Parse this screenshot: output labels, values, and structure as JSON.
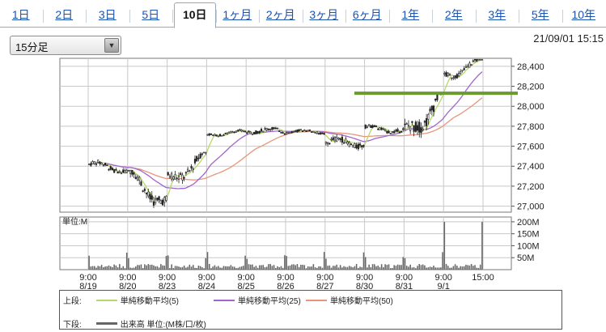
{
  "tabs": [
    {
      "label": "1日",
      "active": false
    },
    {
      "label": "2日",
      "active": false
    },
    {
      "label": "3日",
      "active": false
    },
    {
      "label": "5日",
      "active": false
    },
    {
      "label": "10日",
      "active": true
    },
    {
      "label": "1ヶ月",
      "active": false
    },
    {
      "label": "2ヶ月",
      "active": false
    },
    {
      "label": "3ヶ月",
      "active": false
    },
    {
      "label": "6ヶ月",
      "active": false
    },
    {
      "label": "1年",
      "active": false
    },
    {
      "label": "2年",
      "active": false
    },
    {
      "label": "3年",
      "active": false
    },
    {
      "label": "5年",
      "active": false
    },
    {
      "label": "10年",
      "active": false
    }
  ],
  "interval_select": {
    "value": "15分足"
  },
  "timestamp": "21/09/01 15:15",
  "colors": {
    "candle_up": "#ffffff",
    "candle_down": "#222222",
    "ma5": "#b6d96a",
    "ma25": "#a066cc",
    "ma50": "#e8957a",
    "hline": "#6b9a2e",
    "volume": "#666666",
    "grid": "#c8c8c8"
  },
  "legend": {
    "upper_label": "上段:",
    "lower_label": "下段:",
    "ma5": "単純移動平均(5)",
    "ma25": "単純移動平均(25)",
    "ma50": "単純移動平均(50)",
    "volume": "出来高 単位:(M株/口/枚)"
  },
  "chart_data": {
    "type": "candlestick",
    "x_ticks": [
      {
        "time": "9:00",
        "date": "8/19"
      },
      {
        "time": "9:00",
        "date": "8/20"
      },
      {
        "time": "9:00",
        "date": "8/23"
      },
      {
        "time": "9:00",
        "date": "8/24"
      },
      {
        "time": "9:00",
        "date": "8/25"
      },
      {
        "time": "9:00",
        "date": "8/26"
      },
      {
        "time": "9:00",
        "date": "8/27"
      },
      {
        "time": "9:00",
        "date": "8/30"
      },
      {
        "time": "9:00",
        "date": "8/31"
      },
      {
        "time": "9:00",
        "date": "9/1"
      },
      {
        "time": "15:00",
        "date": ""
      }
    ],
    "price_axis": {
      "ticks": [
        "28,400",
        "28,200",
        "28,000",
        "27,800",
        "27,600",
        "27,400",
        "27,200",
        "27,000"
      ],
      "ylim": [
        26940,
        28480
      ]
    },
    "horizontal_line": 28130,
    "daily_ohlc": [
      {
        "date": "8/19",
        "open": 27420,
        "high": 27520,
        "low": 27330,
        "close": 27360
      },
      {
        "date": "8/20",
        "open": 27320,
        "high": 27360,
        "low": 26960,
        "close": 27020
      },
      {
        "date": "8/23",
        "open": 27250,
        "high": 27540,
        "low": 27200,
        "close": 27510
      },
      {
        "date": "8/24",
        "open": 27720,
        "high": 27800,
        "low": 27700,
        "close": 27740
      },
      {
        "date": "8/25",
        "open": 27760,
        "high": 27860,
        "low": 27720,
        "close": 27750
      },
      {
        "date": "8/26",
        "open": 27750,
        "high": 27790,
        "low": 27700,
        "close": 27740
      },
      {
        "date": "8/27",
        "open": 27630,
        "high": 27760,
        "low": 27520,
        "close": 27640
      },
      {
        "date": "8/30",
        "open": 27780,
        "high": 27830,
        "low": 27690,
        "close": 27760
      },
      {
        "date": "8/31",
        "open": 27700,
        "high": 28130,
        "low": 27650,
        "close": 28100
      },
      {
        "date": "9/1",
        "open": 28300,
        "high": 28470,
        "low": 28250,
        "close": 28450
      }
    ],
    "volume_axis": {
      "label": "単位:M",
      "ticks": [
        "200M",
        "150M",
        "100M",
        "50M"
      ],
      "ylim": [
        0,
        220
      ]
    }
  }
}
